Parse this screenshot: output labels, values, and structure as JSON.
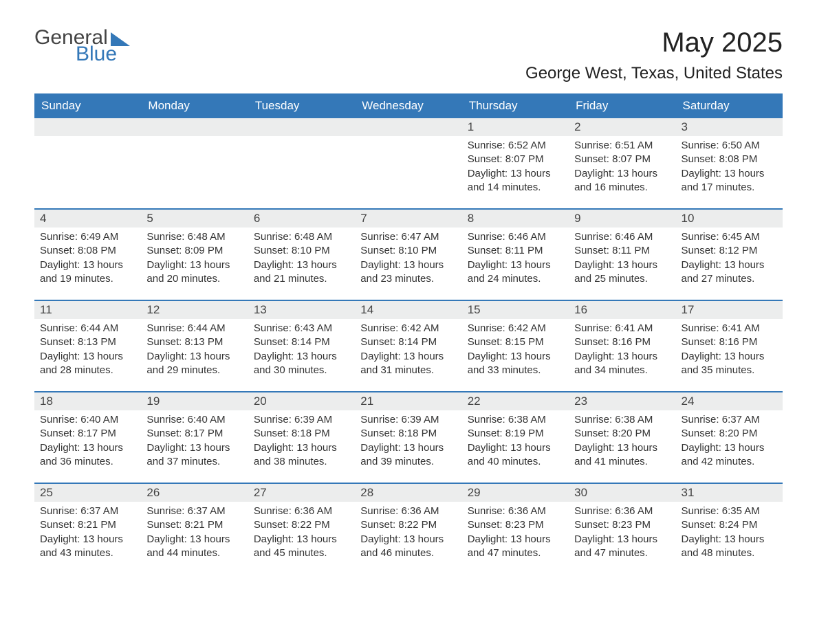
{
  "logo": {
    "part1": "General",
    "part2": "Blue"
  },
  "title": "May 2025",
  "location": "George West, Texas, United States",
  "colors": {
    "brand": "#3478b8",
    "dayHeaderBg": "#eceded",
    "text": "#333"
  },
  "weekdays": [
    "Sunday",
    "Monday",
    "Tuesday",
    "Wednesday",
    "Thursday",
    "Friday",
    "Saturday"
  ],
  "labels": {
    "sunrise": "Sunrise:",
    "sunset": "Sunset:",
    "daylight": "Daylight:"
  },
  "weeks": [
    [
      {
        "empty": true
      },
      {
        "empty": true
      },
      {
        "empty": true
      },
      {
        "empty": true
      },
      {
        "day": "1",
        "sunrise": "6:52 AM",
        "sunset": "8:07 PM",
        "daylight": "13 hours and 14 minutes."
      },
      {
        "day": "2",
        "sunrise": "6:51 AM",
        "sunset": "8:07 PM",
        "daylight": "13 hours and 16 minutes."
      },
      {
        "day": "3",
        "sunrise": "6:50 AM",
        "sunset": "8:08 PM",
        "daylight": "13 hours and 17 minutes."
      }
    ],
    [
      {
        "day": "4",
        "sunrise": "6:49 AM",
        "sunset": "8:08 PM",
        "daylight": "13 hours and 19 minutes."
      },
      {
        "day": "5",
        "sunrise": "6:48 AM",
        "sunset": "8:09 PM",
        "daylight": "13 hours and 20 minutes."
      },
      {
        "day": "6",
        "sunrise": "6:48 AM",
        "sunset": "8:10 PM",
        "daylight": "13 hours and 21 minutes."
      },
      {
        "day": "7",
        "sunrise": "6:47 AM",
        "sunset": "8:10 PM",
        "daylight": "13 hours and 23 minutes."
      },
      {
        "day": "8",
        "sunrise": "6:46 AM",
        "sunset": "8:11 PM",
        "daylight": "13 hours and 24 minutes."
      },
      {
        "day": "9",
        "sunrise": "6:46 AM",
        "sunset": "8:11 PM",
        "daylight": "13 hours and 25 minutes."
      },
      {
        "day": "10",
        "sunrise": "6:45 AM",
        "sunset": "8:12 PM",
        "daylight": "13 hours and 27 minutes."
      }
    ],
    [
      {
        "day": "11",
        "sunrise": "6:44 AM",
        "sunset": "8:13 PM",
        "daylight": "13 hours and 28 minutes."
      },
      {
        "day": "12",
        "sunrise": "6:44 AM",
        "sunset": "8:13 PM",
        "daylight": "13 hours and 29 minutes."
      },
      {
        "day": "13",
        "sunrise": "6:43 AM",
        "sunset": "8:14 PM",
        "daylight": "13 hours and 30 minutes."
      },
      {
        "day": "14",
        "sunrise": "6:42 AM",
        "sunset": "8:14 PM",
        "daylight": "13 hours and 31 minutes."
      },
      {
        "day": "15",
        "sunrise": "6:42 AM",
        "sunset": "8:15 PM",
        "daylight": "13 hours and 33 minutes."
      },
      {
        "day": "16",
        "sunrise": "6:41 AM",
        "sunset": "8:16 PM",
        "daylight": "13 hours and 34 minutes."
      },
      {
        "day": "17",
        "sunrise": "6:41 AM",
        "sunset": "8:16 PM",
        "daylight": "13 hours and 35 minutes."
      }
    ],
    [
      {
        "day": "18",
        "sunrise": "6:40 AM",
        "sunset": "8:17 PM",
        "daylight": "13 hours and 36 minutes."
      },
      {
        "day": "19",
        "sunrise": "6:40 AM",
        "sunset": "8:17 PM",
        "daylight": "13 hours and 37 minutes."
      },
      {
        "day": "20",
        "sunrise": "6:39 AM",
        "sunset": "8:18 PM",
        "daylight": "13 hours and 38 minutes."
      },
      {
        "day": "21",
        "sunrise": "6:39 AM",
        "sunset": "8:18 PM",
        "daylight": "13 hours and 39 minutes."
      },
      {
        "day": "22",
        "sunrise": "6:38 AM",
        "sunset": "8:19 PM",
        "daylight": "13 hours and 40 minutes."
      },
      {
        "day": "23",
        "sunrise": "6:38 AM",
        "sunset": "8:20 PM",
        "daylight": "13 hours and 41 minutes."
      },
      {
        "day": "24",
        "sunrise": "6:37 AM",
        "sunset": "8:20 PM",
        "daylight": "13 hours and 42 minutes."
      }
    ],
    [
      {
        "day": "25",
        "sunrise": "6:37 AM",
        "sunset": "8:21 PM",
        "daylight": "13 hours and 43 minutes."
      },
      {
        "day": "26",
        "sunrise": "6:37 AM",
        "sunset": "8:21 PM",
        "daylight": "13 hours and 44 minutes."
      },
      {
        "day": "27",
        "sunrise": "6:36 AM",
        "sunset": "8:22 PM",
        "daylight": "13 hours and 45 minutes."
      },
      {
        "day": "28",
        "sunrise": "6:36 AM",
        "sunset": "8:22 PM",
        "daylight": "13 hours and 46 minutes."
      },
      {
        "day": "29",
        "sunrise": "6:36 AM",
        "sunset": "8:23 PM",
        "daylight": "13 hours and 47 minutes."
      },
      {
        "day": "30",
        "sunrise": "6:36 AM",
        "sunset": "8:23 PM",
        "daylight": "13 hours and 47 minutes."
      },
      {
        "day": "31",
        "sunrise": "6:35 AM",
        "sunset": "8:24 PM",
        "daylight": "13 hours and 48 minutes."
      }
    ]
  ]
}
